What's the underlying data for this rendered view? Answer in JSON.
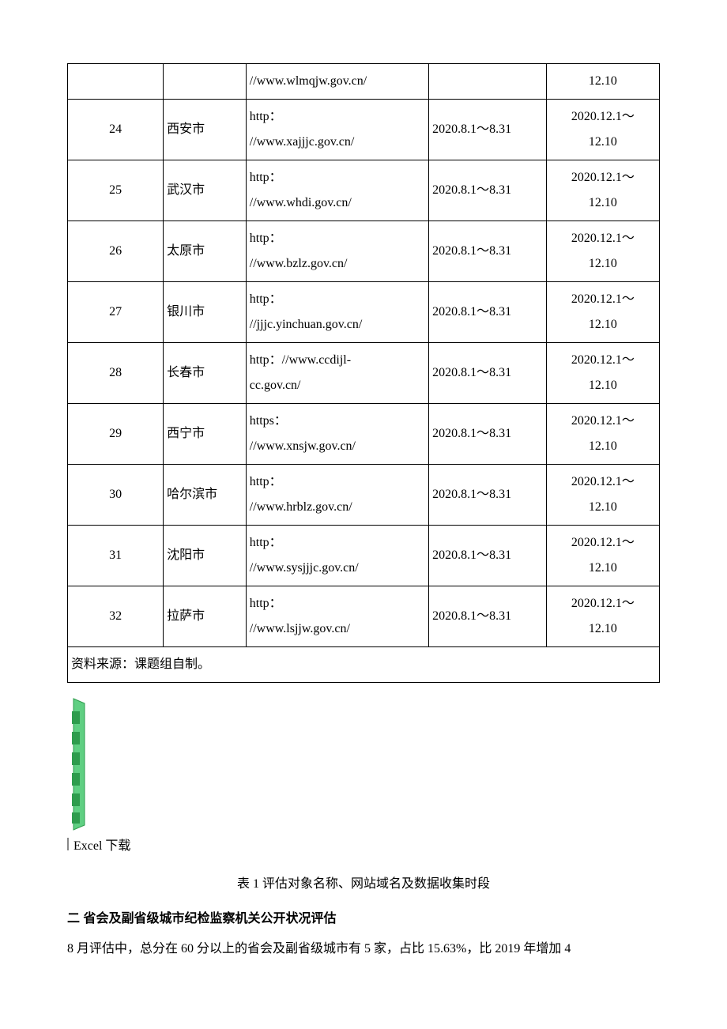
{
  "table": {
    "partial_row": {
      "idx": "",
      "city": "",
      "url": "//www.wlmqjw.gov.cn/",
      "date1": "",
      "date2": "12.10"
    },
    "rows": [
      {
        "idx": "24",
        "city": "西安市",
        "url_l1": "http：",
        "url_l2": "//www.xajjjc.gov.cn/",
        "date1": "2020.8.1～8.31",
        "date2_l1": "2020.12.1～",
        "date2_l2": "12.10"
      },
      {
        "idx": "25",
        "city": "武汉市",
        "url_l1": "http：",
        "url_l2": "//www.whdi.gov.cn/",
        "date1": "2020.8.1～8.31",
        "date2_l1": "2020.12.1～",
        "date2_l2": "12.10"
      },
      {
        "idx": "26",
        "city": "太原市",
        "url_l1": "http：",
        "url_l2": "//www.bzlz.gov.cn/",
        "date1": "2020.8.1～8.31",
        "date2_l1": "2020.12.1～",
        "date2_l2": "12.10"
      },
      {
        "idx": "27",
        "city": "银川市",
        "url_l1": "http：",
        "url_l2": "//jjjc.yinchuan.gov.cn/",
        "date1": "2020.8.1～8.31",
        "date2_l1": "2020.12.1～",
        "date2_l2": "12.10"
      },
      {
        "idx": "28",
        "city": "长春市",
        "url_l1": "http：//www.ccdijl-",
        "url_l2": "cc.gov.cn/",
        "date1": "2020.8.1～8.31",
        "date2_l1": "2020.12.1～",
        "date2_l2": "12.10"
      },
      {
        "idx": "29",
        "city": "西宁市",
        "url_l1": "https：",
        "url_l2": "//www.xnsjw.gov.cn/",
        "date1": "2020.8.1～8.31",
        "date2_l1": "2020.12.1～",
        "date2_l2": "12.10"
      },
      {
        "idx": "30",
        "city": "哈尔滨市",
        "url_l1": "http：",
        "url_l2": "//www.hrblz.gov.cn/",
        "date1": "2020.8.1～8.31",
        "date2_l1": "2020.12.1～",
        "date2_l2": "12.10"
      },
      {
        "idx": "31",
        "city": "沈阳市",
        "url_l1": "http：",
        "url_l2": "//www.sysjjjc.gov.cn/",
        "date1": "2020.8.1～8.31",
        "date2_l1": "2020.12.1～",
        "date2_l2": "12.10"
      },
      {
        "idx": "32",
        "city": "拉萨市",
        "url_l1": "http：",
        "url_l2": "//www.lsjjw.gov.cn/",
        "date1": "2020.8.1～8.31",
        "date2_l1": "2020.12.1～",
        "date2_l2": "12.10"
      }
    ],
    "source": "资料来源：课题组自制。"
  },
  "excel_label": "Excel 下载",
  "caption": "表 1 评估对象名称、网站域名及数据收集时段",
  "section_heading": "二 省会及副省级城市纪检监察机关公开状况评估",
  "body_para": "8 月评估中，总分在 60 分以上的省会及副省级城市有 5 家，占比 15.63%，比 2019 年增加 4",
  "icon": {
    "stroke": "#2e9c4d",
    "fill_light": "#5fcf82",
    "fill_dark": "#2e9c4d"
  }
}
